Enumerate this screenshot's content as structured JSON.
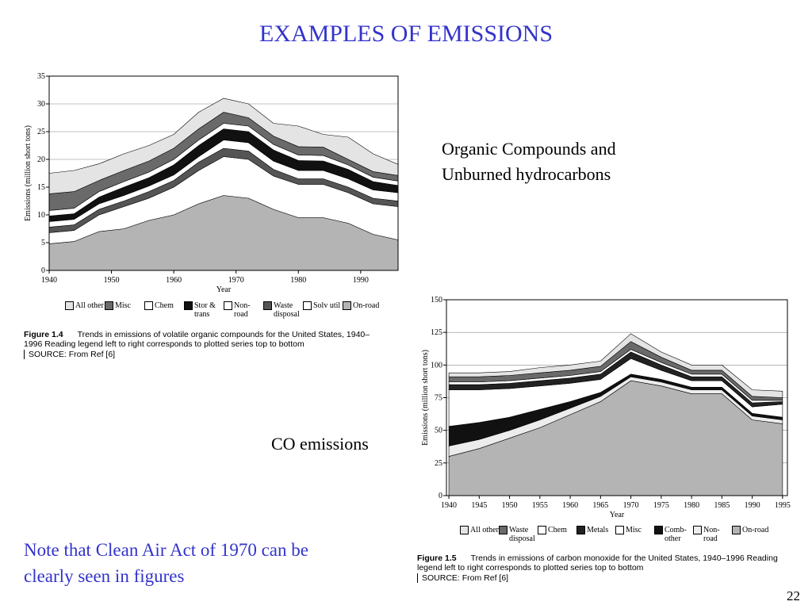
{
  "title": "EXAMPLES OF EMISSIONS",
  "labels": {
    "voc": "Organic Compounds and Unburned hydrocarbons",
    "co": "CO emissions"
  },
  "note": "Note that Clean Air Act of 1970 can be clearly seen in figures",
  "page_number": "22",
  "chart_data": [
    {
      "type": "area",
      "stacked": true,
      "grid": true,
      "x": [
        1940,
        1944,
        1948,
        1952,
        1956,
        1960,
        1964,
        1968,
        1972,
        1976,
        1980,
        1984,
        1988,
        1992,
        1996
      ],
      "xlim": [
        1940,
        1996
      ],
      "xticks": [
        1940,
        1950,
        1960,
        1970,
        1980,
        1990
      ],
      "ylim": [
        0,
        35
      ],
      "yticks": [
        0,
        5,
        10,
        15,
        20,
        25,
        30,
        35
      ],
      "xlabel": "Year",
      "ylabel": "Emissions (million short tons)",
      "series": [
        {
          "name": "All other",
          "color": "#e4e4e4",
          "values": [
            3.7,
            3.8,
            3,
            3,
            2.8,
            2.5,
            3,
            2.5,
            2.5,
            2.3,
            3.7,
            2.3,
            4,
            3.2,
            2
          ]
        },
        {
          "name": "Misc",
          "color": "#6a6a6a",
          "values": [
            3,
            3,
            2,
            2,
            2,
            2,
            2,
            2,
            1.5,
            1.5,
            1.5,
            1.5,
            1,
            1,
            1
          ]
        },
        {
          "name": "Chem",
          "color": "#ffffff",
          "values": [
            1,
            1,
            1,
            1,
            1,
            1,
            1,
            1,
            1,
            1,
            1,
            1,
            0.8,
            0.8,
            0.8
          ]
        },
        {
          "name": "Stor & trans",
          "color": "#111111",
          "values": [
            1,
            1,
            1.2,
            1.5,
            1.5,
            1.8,
            2,
            2,
            2,
            2,
            1.8,
            1.7,
            1.7,
            1.5,
            1.3
          ]
        },
        {
          "name": "Non-road",
          "color": "#ffffff",
          "values": [
            1,
            1,
            1,
            1,
            1,
            1,
            1,
            1.5,
            1.5,
            1.5,
            1.5,
            1.5,
            1.5,
            1.5,
            1.5
          ]
        },
        {
          "name": "Waste disposal",
          "color": "#555555",
          "values": [
            1,
            1,
            1,
            1,
            1.2,
            1.2,
            1.5,
            1.5,
            1.5,
            1.2,
            1,
            1,
            1,
            1,
            1
          ]
        },
        {
          "name": "Solv util",
          "color": "#ffffff",
          "values": [
            2,
            2,
            3,
            4,
            4,
            5,
            6,
            7,
            7,
            6,
            6,
            6,
            5.5,
            5.5,
            6
          ]
        },
        {
          "name": "On-road",
          "color": "#b4b4b4",
          "values": [
            4.8,
            5.2,
            7,
            7.5,
            9,
            10,
            12,
            13.5,
            13,
            11,
            9.5,
            9.5,
            8.5,
            6.5,
            5.5
          ]
        }
      ],
      "figure_label": "Figure 1.4",
      "caption": "Trends in emissions of volatile organic compounds for the United States, 1940–1996  Reading legend left to right corresponds to plotted series top to bottom",
      "source": "SOURCE: From Ref  [6]"
    },
    {
      "type": "area",
      "stacked": true,
      "grid": true,
      "x": [
        1940,
        1945,
        1950,
        1955,
        1960,
        1965,
        1970,
        1975,
        1980,
        1985,
        1990,
        1995
      ],
      "xlim": [
        1939.6,
        1995.8
      ],
      "xticks": [
        1940,
        1945,
        1950,
        1955,
        1960,
        1965,
        1970,
        1975,
        1980,
        1985,
        1990,
        1995
      ],
      "ylim": [
        0,
        150
      ],
      "yticks": [
        0,
        25,
        50,
        75,
        100,
        125,
        150
      ],
      "xlabel": "Year",
      "ylabel": "Emissions (million short tons)",
      "series": [
        {
          "name": "All other",
          "color": "#e4e4e4",
          "values": [
            3,
            3,
            3,
            4,
            4,
            4,
            6,
            4,
            4,
            4,
            5,
            5
          ]
        },
        {
          "name": "Waste disposal",
          "color": "#6a6a6a",
          "values": [
            4,
            4,
            4,
            4,
            4,
            4,
            6,
            4,
            3,
            3,
            3,
            2
          ]
        },
        {
          "name": "Chem",
          "color": "#ffffff",
          "values": [
            2,
            2,
            2,
            2,
            2,
            2,
            2,
            2,
            2,
            2,
            2,
            1
          ]
        },
        {
          "name": "Metals",
          "color": "#222222",
          "values": [
            4,
            4,
            4,
            4,
            4,
            4,
            5,
            4,
            3,
            3,
            3,
            2
          ]
        },
        {
          "name": "Misc",
          "color": "#ffffff",
          "values": [
            28,
            25,
            22,
            18,
            14,
            10,
            12,
            7,
            5,
            5,
            5,
            10
          ]
        },
        {
          "name": "Comb-other",
          "color": "#111111",
          "values": [
            15,
            13,
            10,
            8,
            5,
            3,
            2,
            2,
            2,
            2,
            2,
            2
          ]
        },
        {
          "name": "Non-road",
          "color": "#ececec",
          "values": [
            8,
            7,
            6,
            6,
            5,
            4,
            3,
            3,
            3,
            3,
            3,
            3
          ]
        },
        {
          "name": "On-road",
          "color": "#b4b4b4",
          "values": [
            30,
            36,
            44,
            52,
            62,
            72,
            88,
            84,
            78,
            78,
            58,
            55
          ]
        }
      ],
      "figure_label": "Figure 1.5",
      "caption": "Trends in emissions of carbon monoxide for the United States, 1940–1996 Reading legend left to right corresponds to plotted series top to bottom",
      "source": "SOURCE: From Ref  [6]"
    }
  ]
}
